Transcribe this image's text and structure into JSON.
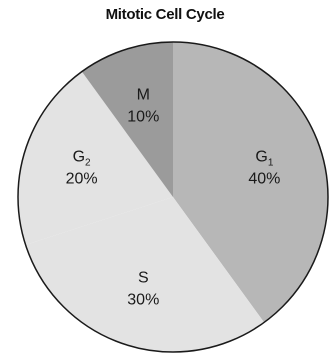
{
  "chart_data": {
    "type": "pie",
    "title": "Mitotic Cell Cycle",
    "slices": [
      {
        "label": "G",
        "subscript": "1",
        "value": 40,
        "value_label": "40%",
        "color": "#b7b7b7"
      },
      {
        "label": "S",
        "subscript": "",
        "value": 30,
        "value_label": "30%",
        "color": "#e3e3e3"
      },
      {
        "label": "G",
        "subscript": "2",
        "value": 20,
        "value_label": "20%",
        "color": "#e3e3e3"
      },
      {
        "label": "M",
        "subscript": "",
        "value": 10,
        "value_label": "10%",
        "color": "#9b9b9b"
      }
    ],
    "start_angle_deg": 0,
    "direction": "clockwise",
    "legend": "none",
    "border_color": "#1a1a1a"
  }
}
